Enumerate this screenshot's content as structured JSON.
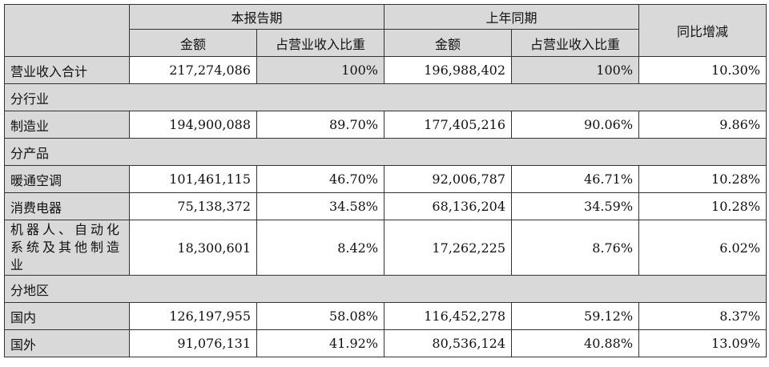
{
  "header": {
    "current_period": "本报告期",
    "prior_period": "上年同期",
    "yoy_change": "同比增减",
    "amount": "金额",
    "share": "占营业收入比重"
  },
  "rows": {
    "total": {
      "label": "营业收入合计",
      "cur_amount": "217,274,086",
      "cur_share": "100%",
      "prev_amount": "196,988,402",
      "prev_share": "100%",
      "change": "10.30%"
    },
    "sec_industry": "分行业",
    "manufacturing": {
      "label": "制造业",
      "cur_amount": "194,900,088",
      "cur_share": "89.70%",
      "prev_amount": "177,405,216",
      "prev_share": "90.06%",
      "change": "9.86%"
    },
    "sec_product": "分产品",
    "hvac": {
      "label": "暖通空调",
      "cur_amount": "101,461,115",
      "cur_share": "46.70%",
      "prev_amount": "92,006,787",
      "prev_share": "46.71%",
      "change": "10.28%"
    },
    "consumer": {
      "label": "消费电器",
      "cur_amount": "75,138,372",
      "cur_share": "34.58%",
      "prev_amount": "68,136,204",
      "prev_share": "34.59%",
      "change": "10.28%"
    },
    "robotics": {
      "label": "机器人、自动化系统及其他制造业",
      "cur_amount": "18,300,601",
      "cur_share": "8.42%",
      "prev_amount": "17,262,225",
      "prev_share": "8.76%",
      "change": "6.02%"
    },
    "sec_region": "分地区",
    "domestic": {
      "label": "国内",
      "cur_amount": "126,197,955",
      "cur_share": "58.08%",
      "prev_amount": "116,452,278",
      "prev_share": "59.12%",
      "change": "8.37%"
    },
    "overseas": {
      "label": "国外",
      "cur_amount": "91,076,131",
      "cur_share": "41.92%",
      "prev_amount": "80,536,124",
      "prev_share": "40.88%",
      "change": "13.09%"
    }
  }
}
